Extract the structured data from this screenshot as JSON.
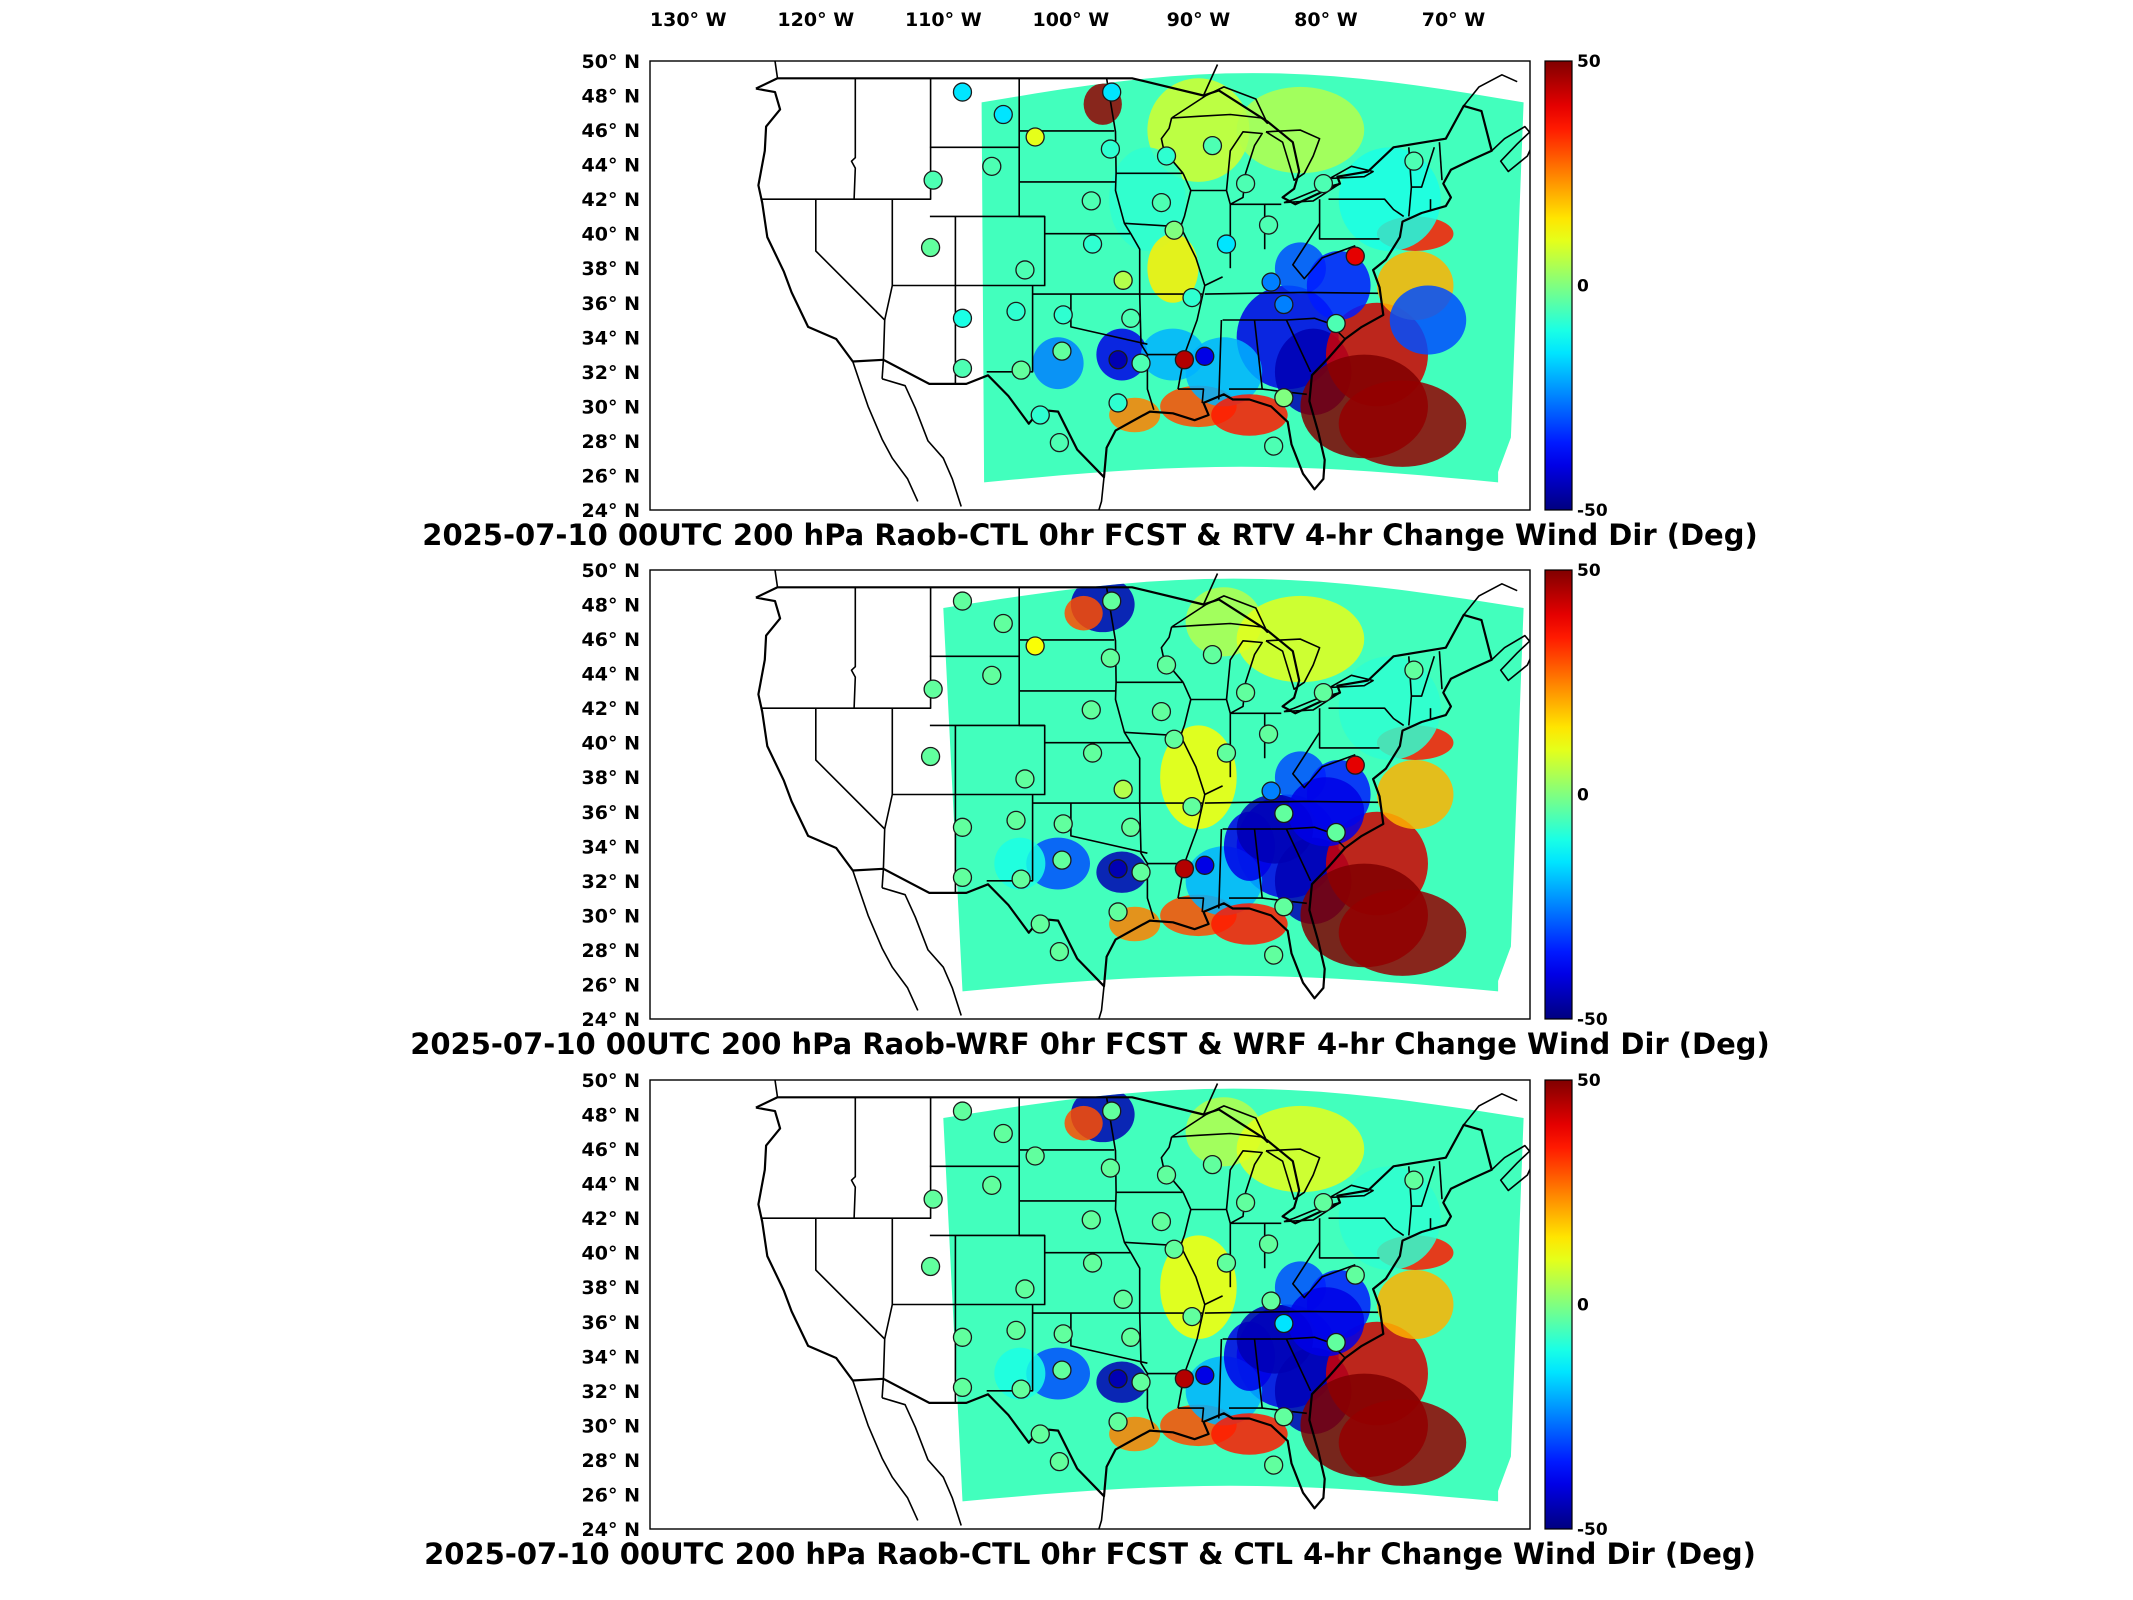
{
  "lon_ticks": [
    "130° W",
    "120° W",
    "110° W",
    "100° W",
    "90° W",
    "80° W",
    "70° W"
  ],
  "lat_ticks": [
    "50° N",
    "48° N",
    "46° N",
    "44° N",
    "42° N",
    "40° N",
    "38° N",
    "36° N",
    "34° N",
    "32° N",
    "30° N",
    "28° N",
    "26° N",
    "24° N"
  ],
  "colorbar": {
    "max_label": "50",
    "mid_label": "0",
    "min_label": "-50",
    "range": [
      -50,
      50
    ],
    "colormap": "jet"
  },
  "colors": {
    "map_border": "#000000",
    "state_lines": "#000000",
    "background": "#ffffff"
  },
  "panels": [
    {
      "title": "2025-07-10 00UTC 200 hPa Raob-CTL 0hr FCST & RTV 4-hr Change Wind Dir (Deg)",
      "field_extent": "central-eastern",
      "stations": [
        {
          "lon": -108.5,
          "lat": 48.2,
          "v": -15
        },
        {
          "lon": -110.8,
          "lat": 43.1,
          "v": -5
        },
        {
          "lon": -111,
          "lat": 39.2,
          "v": -3
        },
        {
          "lon": -108.5,
          "lat": 35.1,
          "v": -10
        },
        {
          "lon": -108.5,
          "lat": 32.2,
          "v": -5
        },
        {
          "lon": -105.3,
          "lat": 46.9,
          "v": -15
        },
        {
          "lon": -106.2,
          "lat": 43.9,
          "v": -5
        },
        {
          "lon": -102.8,
          "lat": 45.6,
          "v": 10
        },
        {
          "lon": -103.6,
          "lat": 37.9,
          "v": -5
        },
        {
          "lon": -104.3,
          "lat": 35.5,
          "v": -8
        },
        {
          "lon": -103.9,
          "lat": 32.1,
          "v": -3
        },
        {
          "lon": -102.4,
          "lat": 29.5,
          "v": -8
        },
        {
          "lon": -100.6,
          "lat": 35.3,
          "v": -8
        },
        {
          "lon": -100.7,
          "lat": 33.2,
          "v": -3
        },
        {
          "lon": -100.9,
          "lat": 27.9,
          "v": -5
        },
        {
          "lon": -98.3,
          "lat": 39.4,
          "v": -8
        },
        {
          "lon": -98.4,
          "lat": 41.9,
          "v": -5
        },
        {
          "lon": -96.8,
          "lat": 48.2,
          "v": -15
        },
        {
          "lon": -96.9,
          "lat": 44.9,
          "v": -8
        },
        {
          "lon": -95.9,
          "lat": 37.3,
          "v": 5
        },
        {
          "lon": -95.3,
          "lat": 35.1,
          "v": -5
        },
        {
          "lon": -96.3,
          "lat": 32.7,
          "v": -45
        },
        {
          "lon": -96.3,
          "lat": 30.2,
          "v": -8
        },
        {
          "lon": -94.5,
          "lat": 32.5,
          "v": -5
        },
        {
          "lon": -92.9,
          "lat": 41.8,
          "v": -5
        },
        {
          "lon": -91.9,
          "lat": 40.2,
          "v": 0
        },
        {
          "lon": -92.5,
          "lat": 44.5,
          "v": -8
        },
        {
          "lon": -90.5,
          "lat": 36.3,
          "v": -8
        },
        {
          "lon": -91.1,
          "lat": 32.7,
          "v": 45
        },
        {
          "lon": -89.5,
          "lat": 32.9,
          "v": -40
        },
        {
          "lon": -88.9,
          "lat": 45.1,
          "v": -5
        },
        {
          "lon": -87.8,
          "lat": 39.4,
          "v": -15
        },
        {
          "lon": -86.3,
          "lat": 42.9,
          "v": -5
        },
        {
          "lon": -84.5,
          "lat": 40.5,
          "v": -5
        },
        {
          "lon": -84.3,
          "lat": 37.2,
          "v": -25
        },
        {
          "lon": -83.3,
          "lat": 35.9,
          "v": -25
        },
        {
          "lon": -83.3,
          "lat": 30.5,
          "v": 0
        },
        {
          "lon": -84.1,
          "lat": 27.7,
          "v": -5
        },
        {
          "lon": -80.2,
          "lat": 42.9,
          "v": -5
        },
        {
          "lon": -77.7,
          "lat": 38.7,
          "v": 40
        },
        {
          "lon": -79.2,
          "lat": 34.8,
          "v": -5
        },
        {
          "lon": -73.1,
          "lat": 44.2,
          "v": -5
        }
      ]
    },
    {
      "title": "2025-07-10 00UTC 200 hPa Raob-WRF 0hr FCST & WRF 4-hr Change Wind Dir (Deg)",
      "field_extent": "full",
      "stations": [
        {
          "lon": -108.5,
          "lat": 48.2,
          "v": -3
        },
        {
          "lon": -110.8,
          "lat": 43.1,
          "v": -3
        },
        {
          "lon": -111,
          "lat": 39.2,
          "v": -3
        },
        {
          "lon": -108.5,
          "lat": 35.1,
          "v": -3
        },
        {
          "lon": -108.5,
          "lat": 32.2,
          "v": -3
        },
        {
          "lon": -105.3,
          "lat": 46.9,
          "v": -3
        },
        {
          "lon": -106.2,
          "lat": 43.9,
          "v": -3
        },
        {
          "lon": -102.8,
          "lat": 45.6,
          "v": 12
        },
        {
          "lon": -103.6,
          "lat": 37.9,
          "v": -3
        },
        {
          "lon": -104.3,
          "lat": 35.5,
          "v": -3
        },
        {
          "lon": -103.9,
          "lat": 32.1,
          "v": -3
        },
        {
          "lon": -102.4,
          "lat": 29.5,
          "v": -3
        },
        {
          "lon": -100.6,
          "lat": 35.3,
          "v": -3
        },
        {
          "lon": -100.7,
          "lat": 33.2,
          "v": -3
        },
        {
          "lon": -100.9,
          "lat": 27.9,
          "v": -3
        },
        {
          "lon": -98.3,
          "lat": 39.4,
          "v": -3
        },
        {
          "lon": -98.4,
          "lat": 41.9,
          "v": -3
        },
        {
          "lon": -96.8,
          "lat": 48.2,
          "v": -3
        },
        {
          "lon": -96.9,
          "lat": 44.9,
          "v": -3
        },
        {
          "lon": -95.9,
          "lat": 37.3,
          "v": 5
        },
        {
          "lon": -95.3,
          "lat": 35.1,
          "v": -3
        },
        {
          "lon": -96.3,
          "lat": 32.7,
          "v": -45
        },
        {
          "lon": -96.3,
          "lat": 30.2,
          "v": -3
        },
        {
          "lon": -94.5,
          "lat": 32.5,
          "v": -3
        },
        {
          "lon": -92.9,
          "lat": 41.8,
          "v": -3
        },
        {
          "lon": -91.9,
          "lat": 40.2,
          "v": -3
        },
        {
          "lon": -92.5,
          "lat": 44.5,
          "v": -3
        },
        {
          "lon": -90.5,
          "lat": 36.3,
          "v": -3
        },
        {
          "lon": -91.1,
          "lat": 32.7,
          "v": 45
        },
        {
          "lon": -89.5,
          "lat": 32.9,
          "v": -40
        },
        {
          "lon": -88.9,
          "lat": 45.1,
          "v": -3
        },
        {
          "lon": -87.8,
          "lat": 39.4,
          "v": -3
        },
        {
          "lon": -86.3,
          "lat": 42.9,
          "v": -3
        },
        {
          "lon": -84.5,
          "lat": 40.5,
          "v": -3
        },
        {
          "lon": -84.3,
          "lat": 37.2,
          "v": -25
        },
        {
          "lon": -83.3,
          "lat": 35.9,
          "v": -3
        },
        {
          "lon": -83.3,
          "lat": 30.5,
          "v": -3
        },
        {
          "lon": -84.1,
          "lat": 27.7,
          "v": -3
        },
        {
          "lon": -80.2,
          "lat": 42.9,
          "v": -3
        },
        {
          "lon": -77.7,
          "lat": 38.7,
          "v": 40
        },
        {
          "lon": -79.2,
          "lat": 34.8,
          "v": -3
        },
        {
          "lon": -73.1,
          "lat": 44.2,
          "v": -3
        }
      ]
    },
    {
      "title": "2025-07-10 00UTC 200 hPa Raob-CTL 0hr FCST & CTL 4-hr Change Wind Dir (Deg)",
      "field_extent": "full",
      "stations": [
        {
          "lon": -108.5,
          "lat": 48.2,
          "v": -3
        },
        {
          "lon": -110.8,
          "lat": 43.1,
          "v": -3
        },
        {
          "lon": -111,
          "lat": 39.2,
          "v": -3
        },
        {
          "lon": -108.5,
          "lat": 35.1,
          "v": -3
        },
        {
          "lon": -108.5,
          "lat": 32.2,
          "v": -3
        },
        {
          "lon": -105.3,
          "lat": 46.9,
          "v": -3
        },
        {
          "lon": -106.2,
          "lat": 43.9,
          "v": -3
        },
        {
          "lon": -102.8,
          "lat": 45.6,
          "v": -3
        },
        {
          "lon": -103.6,
          "lat": 37.9,
          "v": -3
        },
        {
          "lon": -104.3,
          "lat": 35.5,
          "v": -3
        },
        {
          "lon": -103.9,
          "lat": 32.1,
          "v": -3
        },
        {
          "lon": -102.4,
          "lat": 29.5,
          "v": -3
        },
        {
          "lon": -100.6,
          "lat": 35.3,
          "v": -3
        },
        {
          "lon": -100.7,
          "lat": 33.2,
          "v": -3
        },
        {
          "lon": -100.9,
          "lat": 27.9,
          "v": -3
        },
        {
          "lon": -98.3,
          "lat": 39.4,
          "v": -3
        },
        {
          "lon": -98.4,
          "lat": 41.9,
          "v": -3
        },
        {
          "lon": -96.8,
          "lat": 48.2,
          "v": -3
        },
        {
          "lon": -96.9,
          "lat": 44.9,
          "v": -3
        },
        {
          "lon": -95.9,
          "lat": 37.3,
          "v": -3
        },
        {
          "lon": -95.3,
          "lat": 35.1,
          "v": -3
        },
        {
          "lon": -96.3,
          "lat": 32.7,
          "v": -45
        },
        {
          "lon": -96.3,
          "lat": 30.2,
          "v": -3
        },
        {
          "lon": -94.5,
          "lat": 32.5,
          "v": -3
        },
        {
          "lon": -92.9,
          "lat": 41.8,
          "v": -3
        },
        {
          "lon": -91.9,
          "lat": 40.2,
          "v": -3
        },
        {
          "lon": -92.5,
          "lat": 44.5,
          "v": -3
        },
        {
          "lon": -90.5,
          "lat": 36.3,
          "v": -3
        },
        {
          "lon": -91.1,
          "lat": 32.7,
          "v": 45
        },
        {
          "lon": -89.5,
          "lat": 32.9,
          "v": -40
        },
        {
          "lon": -88.9,
          "lat": 45.1,
          "v": -3
        },
        {
          "lon": -87.8,
          "lat": 39.4,
          "v": -3
        },
        {
          "lon": -86.3,
          "lat": 42.9,
          "v": -3
        },
        {
          "lon": -84.5,
          "lat": 40.5,
          "v": -3
        },
        {
          "lon": -84.3,
          "lat": 37.2,
          "v": -3
        },
        {
          "lon": -83.3,
          "lat": 35.9,
          "v": -15
        },
        {
          "lon": -83.3,
          "lat": 30.5,
          "v": -3
        },
        {
          "lon": -84.1,
          "lat": 27.7,
          "v": -3
        },
        {
          "lon": -80.2,
          "lat": 42.9,
          "v": -3
        },
        {
          "lon": -77.7,
          "lat": 38.7,
          "v": -3
        },
        {
          "lon": -79.2,
          "lat": 34.8,
          "v": -3
        },
        {
          "lon": -73.1,
          "lat": 44.2,
          "v": -3
        }
      ]
    }
  ]
}
